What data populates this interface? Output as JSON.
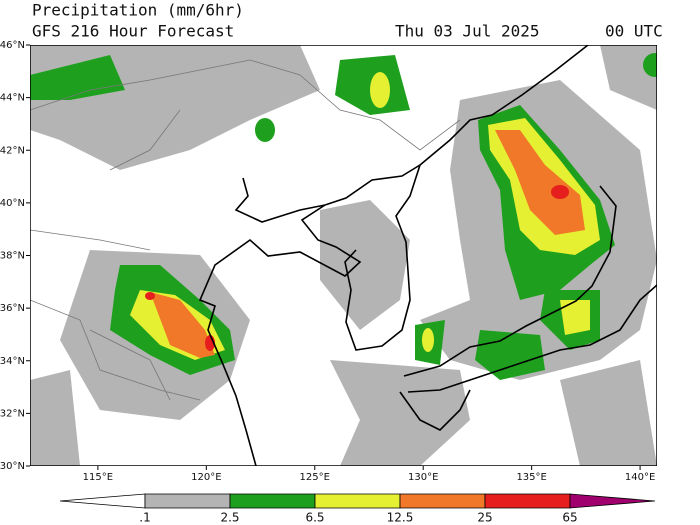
{
  "header": {
    "title": "Precipitation (mm/6hr)",
    "subtitle": "GFS 216 Hour Forecast",
    "date": "Thu 03 Jul 2025",
    "time": "00 UTC"
  },
  "map": {
    "lon_range": [
      111.87,
      140.78
    ],
    "lat_range": [
      30,
      46
    ],
    "lat_ticks": [
      {
        "value": 30,
        "label": "30°N"
      },
      {
        "value": 32,
        "label": "32°N"
      },
      {
        "value": 34,
        "label": "34°N"
      },
      {
        "value": 36,
        "label": "36°N"
      },
      {
        "value": 38,
        "label": "38°N"
      },
      {
        "value": 40,
        "label": "40°N"
      },
      {
        "value": 42,
        "label": "42°N"
      },
      {
        "value": 44,
        "label": "44°N"
      },
      {
        "value": 46,
        "label": "46°N"
      }
    ],
    "lon_ticks": [
      {
        "value": 115,
        "label": "115°E"
      },
      {
        "value": 120,
        "label": "120°E"
      },
      {
        "value": 125,
        "label": "125°E"
      },
      {
        "value": 130,
        "label": "130°E"
      },
      {
        "value": 135,
        "label": "135°E"
      },
      {
        "value": 140,
        "label": "140°E"
      }
    ]
  },
  "colorbar": {
    "labels": [
      ".1",
      "2.5",
      "6.5",
      "12.5",
      "25",
      "65"
    ],
    "colors": [
      "#ffffff",
      "#b4b4b4",
      "#1ea01e",
      "#e6f032",
      "#f07828",
      "#e61e1e",
      "#a0006e"
    ]
  }
}
